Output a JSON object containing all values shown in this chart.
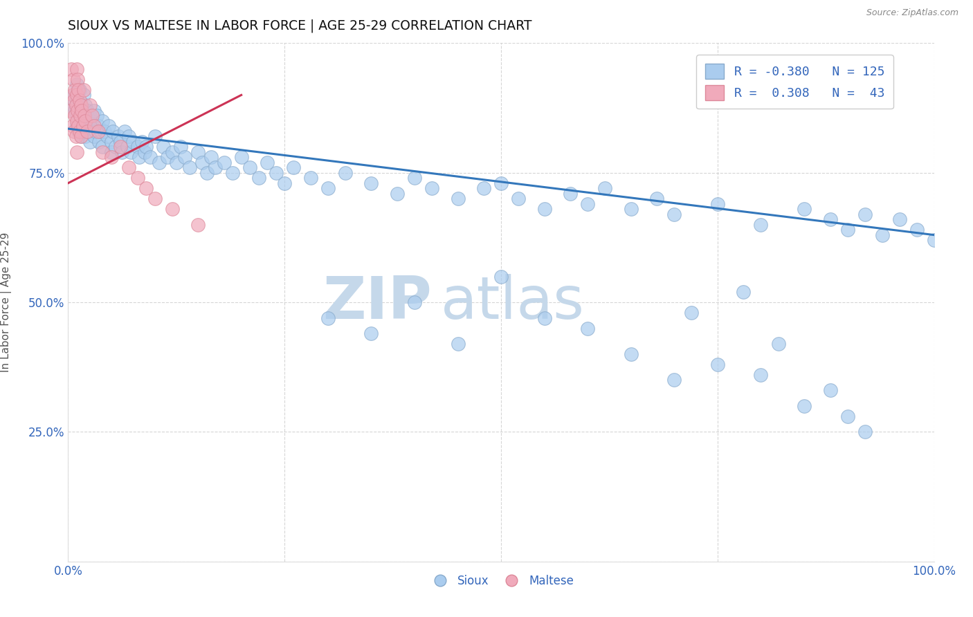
{
  "title": "SIOUX VS MALTESE IN LABOR FORCE | AGE 25-29 CORRELATION CHART",
  "source_text": "Source: ZipAtlas.com",
  "ylabel": "In Labor Force | Age 25-29",
  "xlim": [
    0.0,
    1.0
  ],
  "ylim": [
    0.0,
    1.0
  ],
  "xticks": [
    0.0,
    0.25,
    0.5,
    0.75,
    1.0
  ],
  "yticks": [
    0.0,
    0.25,
    0.5,
    0.75,
    1.0
  ],
  "xticklabels": [
    "0.0%",
    "",
    "",
    "",
    "100.0%"
  ],
  "yticklabels": [
    "",
    "25.0%",
    "50.0%",
    "75.0%",
    "100.0%"
  ],
  "legend_r_sioux": "-0.380",
  "legend_n_sioux": "125",
  "legend_r_maltese": "0.308",
  "legend_n_maltese": "43",
  "sioux_color": "#aaccee",
  "sioux_edge_color": "#88aacc",
  "maltese_color": "#f0aabb",
  "maltese_edge_color": "#dd8899",
  "trend_sioux_color": "#3377bb",
  "trend_maltese_color": "#cc3355",
  "watermark_zip": "ZIP",
  "watermark_atlas": "atlas",
  "watermark_color": "#c5d8ea",
  "background_color": "#ffffff",
  "grid_color": "#cccccc",
  "title_color": "#111111",
  "axis_label_color": "#555555",
  "tick_color": "#3366bb",
  "sioux_trend_x0": 0.0,
  "sioux_trend_y0": 0.835,
  "sioux_trend_x1": 1.0,
  "sioux_trend_y1": 0.63,
  "maltese_trend_x0": 0.0,
  "maltese_trend_y0": 0.73,
  "maltese_trend_x1": 0.2,
  "maltese_trend_y1": 0.9,
  "sioux_x": [
    0.005,
    0.007,
    0.008,
    0.01,
    0.01,
    0.01,
    0.01,
    0.012,
    0.013,
    0.014,
    0.015,
    0.015,
    0.016,
    0.017,
    0.018,
    0.018,
    0.019,
    0.02,
    0.02,
    0.02,
    0.022,
    0.023,
    0.025,
    0.025,
    0.027,
    0.028,
    0.03,
    0.03,
    0.032,
    0.033,
    0.035,
    0.036,
    0.038,
    0.04,
    0.04,
    0.042,
    0.045,
    0.047,
    0.05,
    0.05,
    0.052,
    0.055,
    0.058,
    0.06,
    0.062,
    0.065,
    0.068,
    0.07,
    0.072,
    0.075,
    0.08,
    0.082,
    0.085,
    0.088,
    0.09,
    0.095,
    0.1,
    0.105,
    0.11,
    0.115,
    0.12,
    0.125,
    0.13,
    0.135,
    0.14,
    0.15,
    0.155,
    0.16,
    0.165,
    0.17,
    0.18,
    0.19,
    0.2,
    0.21,
    0.22,
    0.23,
    0.24,
    0.25,
    0.26,
    0.28,
    0.3,
    0.32,
    0.35,
    0.38,
    0.4,
    0.42,
    0.45,
    0.48,
    0.5,
    0.52,
    0.55,
    0.58,
    0.6,
    0.62,
    0.65,
    0.68,
    0.7,
    0.75,
    0.8,
    0.85,
    0.88,
    0.9,
    0.92,
    0.94,
    0.96,
    0.98,
    1.0,
    0.3,
    0.35,
    0.4,
    0.45,
    0.5,
    0.55,
    0.6,
    0.65,
    0.7,
    0.72,
    0.75,
    0.78,
    0.8,
    0.82,
    0.85,
    0.88,
    0.9,
    0.92
  ],
  "sioux_y": [
    0.88,
    0.9,
    0.87,
    0.92,
    0.86,
    0.84,
    0.89,
    0.83,
    0.91,
    0.85,
    0.88,
    0.82,
    0.87,
    0.84,
    0.9,
    0.83,
    0.86,
    0.85,
    0.88,
    0.82,
    0.87,
    0.83,
    0.86,
    0.81,
    0.85,
    0.84,
    0.82,
    0.87,
    0.83,
    0.86,
    0.84,
    0.81,
    0.83,
    0.85,
    0.8,
    0.83,
    0.82,
    0.84,
    0.81,
    0.79,
    0.83,
    0.8,
    0.82,
    0.81,
    0.79,
    0.83,
    0.8,
    0.82,
    0.79,
    0.81,
    0.8,
    0.78,
    0.81,
    0.79,
    0.8,
    0.78,
    0.82,
    0.77,
    0.8,
    0.78,
    0.79,
    0.77,
    0.8,
    0.78,
    0.76,
    0.79,
    0.77,
    0.75,
    0.78,
    0.76,
    0.77,
    0.75,
    0.78,
    0.76,
    0.74,
    0.77,
    0.75,
    0.73,
    0.76,
    0.74,
    0.72,
    0.75,
    0.73,
    0.71,
    0.74,
    0.72,
    0.7,
    0.72,
    0.73,
    0.7,
    0.68,
    0.71,
    0.69,
    0.72,
    0.68,
    0.7,
    0.67,
    0.69,
    0.65,
    0.68,
    0.66,
    0.64,
    0.67,
    0.63,
    0.66,
    0.64,
    0.62,
    0.47,
    0.44,
    0.5,
    0.42,
    0.55,
    0.47,
    0.45,
    0.4,
    0.35,
    0.48,
    0.38,
    0.52,
    0.36,
    0.42,
    0.3,
    0.33,
    0.28,
    0.25
  ],
  "maltese_x": [
    0.003,
    0.004,
    0.005,
    0.005,
    0.006,
    0.007,
    0.007,
    0.008,
    0.008,
    0.009,
    0.009,
    0.01,
    0.01,
    0.01,
    0.01,
    0.011,
    0.011,
    0.012,
    0.012,
    0.013,
    0.013,
    0.014,
    0.015,
    0.015,
    0.016,
    0.017,
    0.018,
    0.019,
    0.02,
    0.022,
    0.025,
    0.028,
    0.03,
    0.035,
    0.04,
    0.05,
    0.06,
    0.07,
    0.08,
    0.09,
    0.1,
    0.12,
    0.15
  ],
  "maltese_y": [
    0.87,
    0.95,
    0.9,
    0.84,
    0.93,
    0.89,
    0.83,
    0.91,
    0.86,
    0.88,
    0.82,
    0.95,
    0.9,
    0.85,
    0.79,
    0.87,
    0.93,
    0.84,
    0.91,
    0.89,
    0.83,
    0.86,
    0.88,
    0.82,
    0.87,
    0.84,
    0.91,
    0.86,
    0.85,
    0.83,
    0.88,
    0.86,
    0.84,
    0.83,
    0.79,
    0.78,
    0.8,
    0.76,
    0.74,
    0.72,
    0.7,
    0.68,
    0.65
  ]
}
